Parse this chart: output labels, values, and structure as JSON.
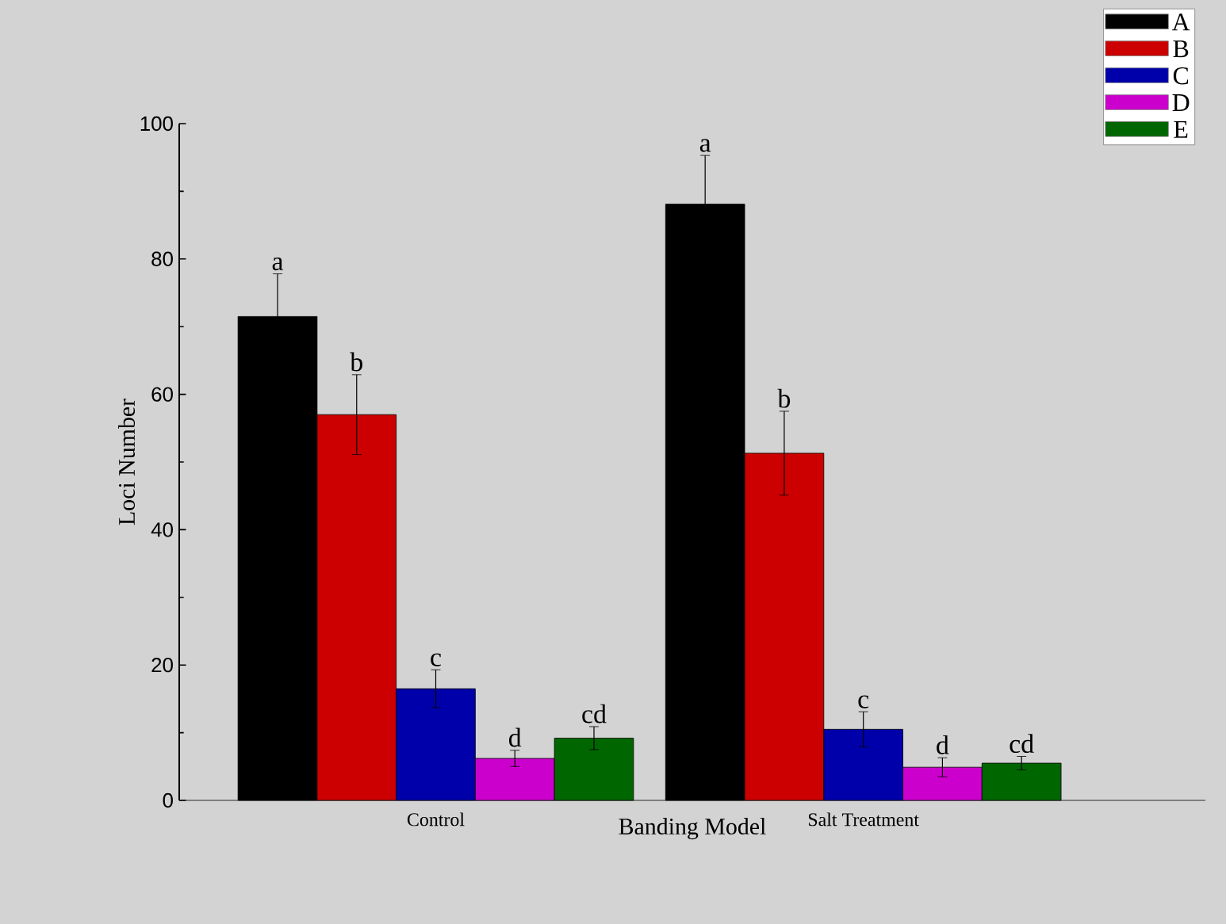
{
  "chart_data": {
    "type": "bar",
    "xlabel": "Banding Model",
    "ylabel": "Loci Number",
    "categories": [
      "Control",
      "Salt Treatment"
    ],
    "series": [
      {
        "name": "A",
        "color": "#000000",
        "values": [
          71.5,
          88.1
        ],
        "errors": [
          6.3,
          7.2
        ],
        "value_labels": [
          "a",
          "a"
        ]
      },
      {
        "name": "B",
        "color": "#cc0000",
        "values": [
          57.0,
          51.3
        ],
        "errors": [
          5.9,
          6.2
        ],
        "value_labels": [
          "b",
          "b"
        ]
      },
      {
        "name": "C",
        "color": "#0000aa",
        "values": [
          16.5,
          10.5
        ],
        "errors": [
          2.8,
          2.6
        ],
        "value_labels": [
          "c",
          "c"
        ]
      },
      {
        "name": "D",
        "color": "#cc00cc",
        "values": [
          6.2,
          4.9
        ],
        "errors": [
          1.2,
          1.4
        ],
        "value_labels": [
          "d",
          "d"
        ]
      },
      {
        "name": "E",
        "color": "#006600",
        "values": [
          9.2,
          5.5
        ],
        "errors": [
          1.7,
          1.0
        ],
        "value_labels": [
          "cd",
          "cd"
        ]
      }
    ],
    "ylim": [
      0,
      100
    ],
    "yticks": [
      0,
      20,
      40,
      60,
      80,
      100
    ],
    "grid": false,
    "legend": "top right"
  }
}
